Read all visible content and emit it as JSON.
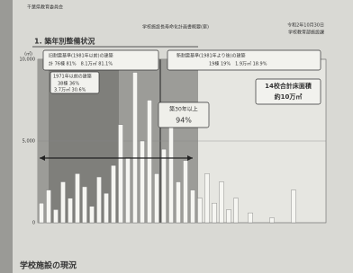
{
  "document": {
    "org": "千葉県教育委員会",
    "title": "学校施設長寿命化計画書概要(案)",
    "date": "令和2年10月30日",
    "dept": "学校教育部施設課",
    "section": "1. 築年別整備状況",
    "footer": "学校施設の現況"
  },
  "chart_data": {
    "type": "bar",
    "y_label": "(㎡)",
    "categories": [
      null,
      null,
      null,
      null,
      null,
      null,
      null,
      null,
      null,
      null,
      null,
      null,
      null,
      null,
      null,
      null,
      null,
      null,
      null,
      null,
      null,
      null,
      null,
      null,
      null,
      null,
      null,
      null,
      null,
      null,
      null,
      null,
      null,
      null,
      null,
      null,
      null,
      null,
      null,
      null
    ],
    "values": [
      1200,
      2000,
      800,
      2500,
      1500,
      3000,
      2200,
      1000,
      2800,
      1800,
      3500,
      6000,
      4000,
      9200,
      5000,
      7500,
      3000,
      4500,
      6500,
      2500,
      3800,
      2000,
      1500,
      3000,
      1200,
      2500,
      800,
      1500,
      0,
      600,
      0,
      0,
      300,
      0,
      0,
      2000,
      0,
      0,
      0,
      0
    ],
    "color": "#f6f6f2",
    "ylim": [
      0,
      10000
    ],
    "yticks": [
      0,
      {
        "value": 5000,
        "label": "5,000"
      },
      {
        "value": 10000,
        "label": "10,000"
      }
    ],
    "annotations": {
      "old_title": "旧耐震基準(1981年以前)の建築",
      "old_stats": "計 76棟 81%　8.1万㎡ 81.1%",
      "pre1971_title": "1971年以前の建築",
      "pre1971_count": "38棟 36%",
      "pre1971_area": "3.7万㎡ 30.6%",
      "new_title": "新耐震基準(1981年より後)の建築",
      "new_stats": "19棟 19%　1.9万㎡ 18.9%",
      "total_title": "14校合計床面積",
      "total_value": "約10万㎡",
      "over30_title": "築30年以上",
      "over30_value": "94%"
    }
  }
}
